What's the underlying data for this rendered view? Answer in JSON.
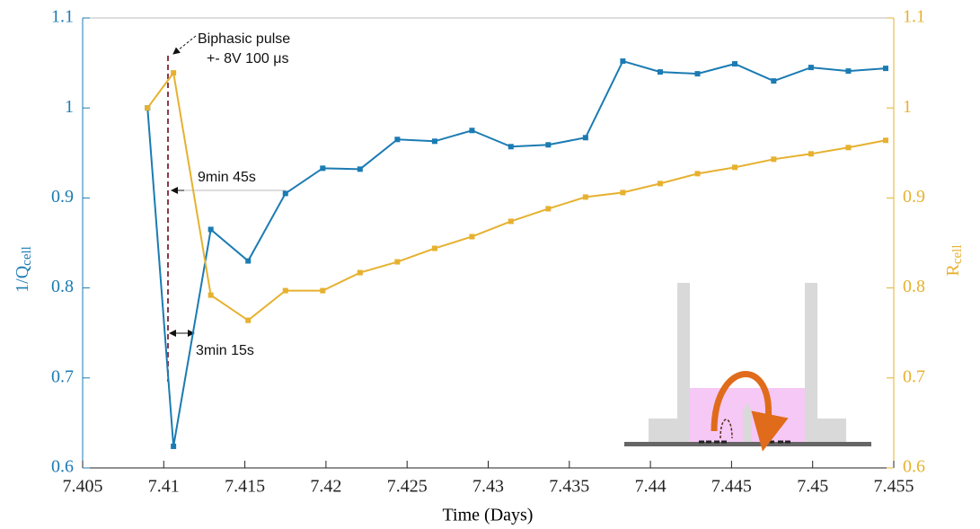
{
  "chart_data": {
    "type": "line",
    "xlabel": "Time (Days)",
    "ylabel": "1/Q",
    "ylabel_subscript": "cell",
    "y2label": "R",
    "y2label_subscript": "cell",
    "annotations": [
      "Biphasic pulse",
      "+- 8V 100 μs",
      "9min 45s",
      "3min 15s"
    ],
    "x": [
      7.409,
      7.4106,
      7.4129,
      7.4152,
      7.4175,
      7.4198,
      7.4221,
      7.4244,
      7.4267,
      7.429,
      7.4314,
      7.4337,
      7.436,
      7.4383,
      7.4406,
      7.4429,
      7.4452,
      7.4476,
      7.4499,
      7.4522,
      7.4545
    ],
    "series": [
      {
        "name": "1/Q",
        "color": "#1b7bb3",
        "axis": "y",
        "values": [
          1.0,
          0.624,
          0.865,
          0.83,
          0.905,
          0.933,
          0.932,
          0.965,
          0.963,
          0.975,
          0.957,
          0.959,
          0.967,
          1.052,
          1.04,
          1.038,
          1.049,
          1.03,
          1.045,
          1.041,
          1.044
        ]
      },
      {
        "name": "R",
        "color": "#e6b12f",
        "axis": "y2",
        "values": [
          1.0,
          1.039,
          0.792,
          0.764,
          0.797,
          0.797,
          0.817,
          0.829,
          0.844,
          0.857,
          0.874,
          0.888,
          0.901,
          0.906,
          0.916,
          0.927,
          0.934,
          0.943,
          0.949,
          0.956,
          0.964
        ]
      }
    ],
    "xlim": [
      7.405,
      7.455
    ],
    "xticks": [
      7.405,
      7.41,
      7.415,
      7.42,
      7.425,
      7.43,
      7.435,
      7.44,
      7.445,
      7.45,
      7.455
    ],
    "ylim": [
      0.6,
      1.1
    ],
    "yticks": [
      0.6,
      0.7,
      0.8,
      0.9,
      1,
      1.1
    ],
    "y2lim": [
      0.6,
      1.1
    ],
    "y2ticks": [
      0.6,
      0.7,
      0.8,
      0.9,
      1,
      1.1
    ],
    "grid": false
  }
}
